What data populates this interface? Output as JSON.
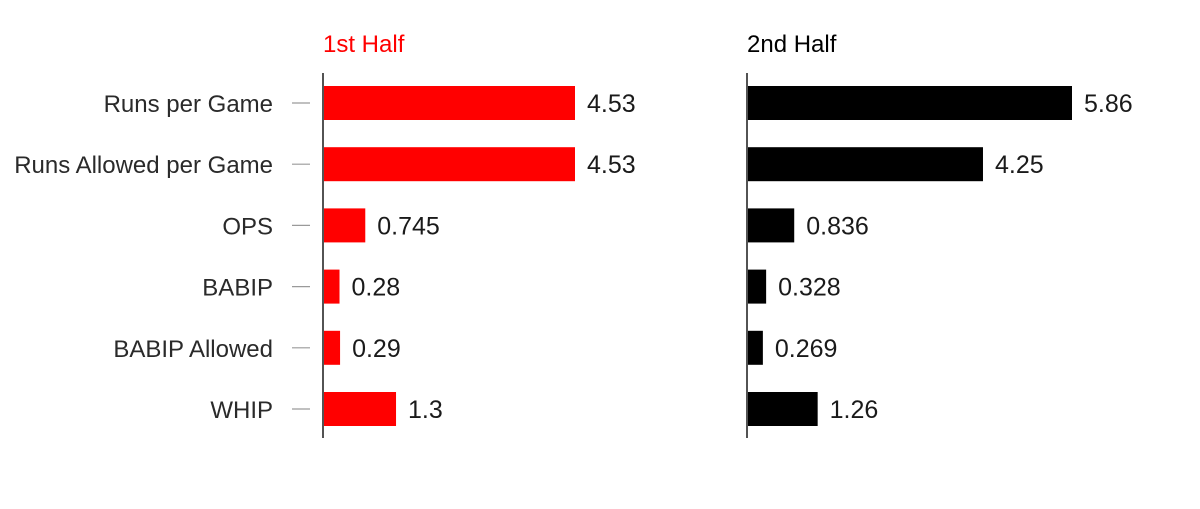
{
  "chart_data": {
    "type": "bar",
    "orientation": "horizontal",
    "categories": [
      "Runs per Game",
      "Runs Allowed per Game",
      "OPS",
      "BABIP",
      "BABIP Allowed",
      "WHIP"
    ],
    "series": [
      {
        "name": "1st Half",
        "color": "#ff0000",
        "values": [
          4.53,
          4.53,
          0.745,
          0.28,
          0.29,
          1.3
        ],
        "labels": [
          "4.53",
          "4.53",
          "0.745",
          "0.28",
          "0.29",
          "1.3"
        ]
      },
      {
        "name": "2nd Half",
        "color": "#000000",
        "values": [
          5.86,
          4.25,
          0.836,
          0.328,
          0.269,
          1.26
        ],
        "labels": [
          "5.86",
          "4.25",
          "0.836",
          "0.328",
          "0.269",
          "1.26"
        ]
      }
    ],
    "xlim": [
      0,
      6.5
    ],
    "grid": false,
    "legend": "panel titles above each panel"
  }
}
